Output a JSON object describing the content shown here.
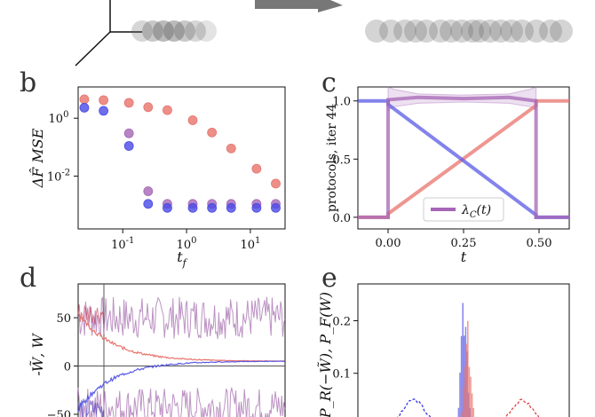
{
  "panels": {
    "b": {
      "label": "b"
    },
    "c": {
      "label": "c"
    },
    "d": {
      "label": "d"
    },
    "e": {
      "label": "e"
    }
  },
  "chart_data": [
    {
      "panel": "b",
      "type": "scatter",
      "xscale": "log",
      "yscale": "log",
      "xlabel": "t_f",
      "ylabel": "ΔF̂ MSE",
      "xlim": [
        0.02,
        35
      ],
      "ylim": [
        0.00015,
        12
      ],
      "xticks": [
        "10^-1",
        "10^0",
        "10^1"
      ],
      "yticks": [
        "10^0",
        "10^-2"
      ],
      "series": [
        {
          "color": "#e8736c",
          "x": [
            0.025,
            0.05,
            0.125,
            0.25,
            0.5,
            1.25,
            2.5,
            5,
            12.5,
            25
          ],
          "y": [
            4.5,
            4.2,
            3.4,
            2.4,
            1.9,
            0.85,
            0.32,
            0.09,
            0.018,
            0.0055
          ]
        },
        {
          "color": "#a566b5",
          "x": [
            0.125,
            0.25,
            0.5,
            1.25,
            2.5,
            5,
            12.5,
            25
          ],
          "y": [
            0.3,
            0.003,
            0.0011,
            0.0011,
            0.0011,
            0.0011,
            0.0011,
            0.0011
          ]
        },
        {
          "color": "#4a4ae6",
          "x": [
            0.025,
            0.05,
            0.125,
            0.25,
            0.5,
            1.25,
            2.5,
            5,
            12.5,
            25
          ],
          "y": [
            2.3,
            1.8,
            0.11,
            0.0011,
            0.0008,
            0.0008,
            0.0008,
            0.0008,
            0.0008,
            0.0008
          ]
        }
      ]
    },
    {
      "panel": "c",
      "type": "line",
      "xlabel": "t",
      "ylabel": "protocols, iter 44",
      "xlim": [
        -0.1,
        0.6
      ],
      "ylim": [
        -0.1,
        1.12
      ],
      "xticks": [
        "0.00",
        "0.25",
        "0.50"
      ],
      "yticks": [
        "0.0",
        "0.5",
        "1.0"
      ],
      "legend": "λ_C(t)",
      "legend_placement": "lower-right",
      "series": [
        {
          "color": "#e8736c",
          "x": [
            -0.1,
            0.0,
            0.0,
            0.49,
            0.49,
            0.6
          ],
          "y": [
            0.0,
            0.0,
            0.03,
            0.96,
            1.0,
            1.0
          ]
        },
        {
          "color": "#5a5ae6",
          "x": [
            -0.1,
            0.0,
            0.0,
            0.49,
            0.49,
            0.6
          ],
          "y": [
            1.0,
            1.0,
            0.97,
            0.02,
            0.0,
            0.0
          ]
        },
        {
          "color": "#a566b5",
          "x": [
            -0.1,
            0.0,
            0.0,
            0.1,
            0.25,
            0.4,
            0.49,
            0.49,
            0.6
          ],
          "y": [
            0.0,
            0.0,
            1.01,
            1.03,
            1.02,
            1.03,
            1.0,
            0.0,
            0.0
          ]
        }
      ]
    },
    {
      "panel": "d",
      "type": "line",
      "ylabel": "-W̃, W",
      "ylim": [
        -62,
        85
      ],
      "yticks": [
        "50",
        "0",
        "−50"
      ],
      "series": [
        {
          "color": "#b07fb8",
          "description": "upper noisy trace around 50"
        },
        {
          "color": "#b07fb8",
          "description": "lower noisy trace around -45"
        },
        {
          "color": "#e8736c",
          "description": "decaying trace from ~55 to ~5"
        },
        {
          "color": "#5a5ae6",
          "description": "rising trace from ~-45 to ~5"
        }
      ]
    },
    {
      "panel": "e",
      "type": "line",
      "ylabel": "P_R(−W̃), P_F(W)",
      "ylim": [
        0,
        0.27
      ],
      "yticks": [
        "0.2",
        "0.1"
      ],
      "series": [
        {
          "color": "#3a3ae0",
          "style": "dashed",
          "description": "left bump peak ~0.05"
        },
        {
          "color": "#e04040",
          "style": "dashed",
          "description": "right bump peak ~0.05"
        },
        {
          "color": "#5a5ae6",
          "description": "central spike ~0.25"
        },
        {
          "color": "#e8736c",
          "description": "central spike ~0.2"
        }
      ]
    }
  ]
}
